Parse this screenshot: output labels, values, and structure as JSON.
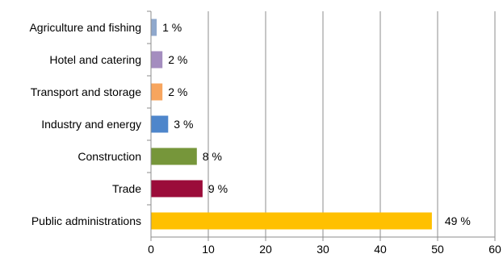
{
  "chart_data": {
    "type": "bar",
    "orientation": "horizontal",
    "categories": [
      "Agriculture and fishing",
      "Hotel and catering",
      "Transport and storage",
      "Industry and energy",
      "Construction",
      "Trade",
      "Public administrations"
    ],
    "values": [
      1,
      2,
      2,
      3,
      8,
      9,
      49
    ],
    "labels": [
      "1 %",
      "2 %",
      "2 %",
      "3 %",
      "8 %",
      "9 %",
      "49 %"
    ],
    "colors": [
      "#8FA8CC",
      "#A48DBF",
      "#F7A55E",
      "#4E86CB",
      "#76963A",
      "#9B0C3A",
      "#FFC000"
    ],
    "xlim": [
      0,
      60
    ],
    "xticks": [
      0,
      10,
      20,
      30,
      40,
      50,
      60
    ],
    "grid": "vertical",
    "legend": "none",
    "title": "",
    "xlabel": "",
    "ylabel": ""
  }
}
